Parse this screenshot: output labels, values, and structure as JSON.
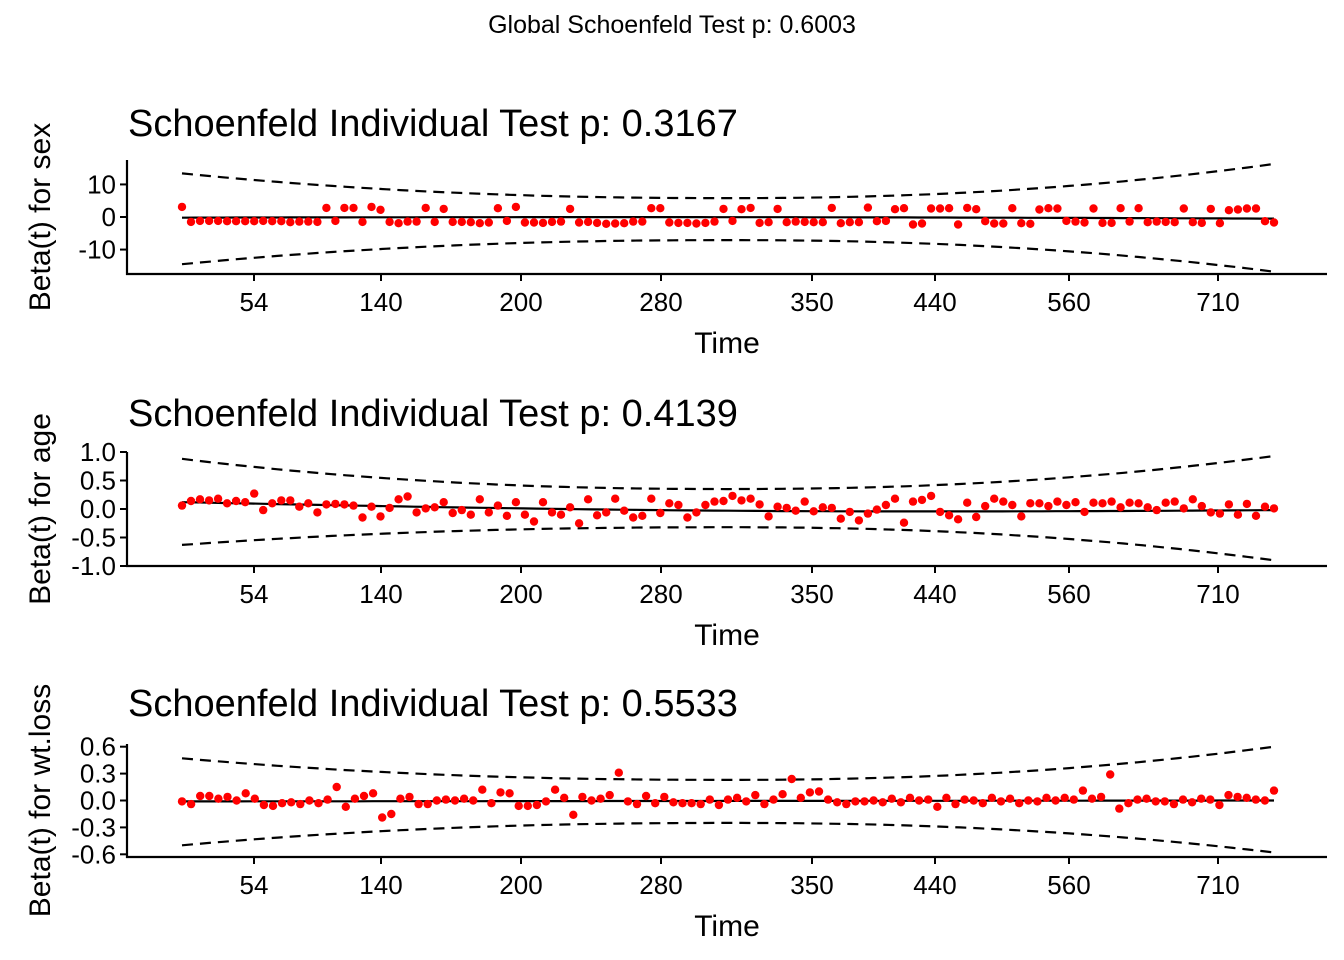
{
  "global_title": "Global Schoenfeld Test p: 0.6003",
  "colors": {
    "points": "#ff0000",
    "lines": "#000000",
    "background": "#ffffff"
  },
  "chart_data": [
    {
      "type": "scatter",
      "title": "Schoenfeld Individual Test p: 0.3167",
      "xlabel": "Time",
      "ylabel": "Beta(t) for sex",
      "x_tick_labels": [
        "54",
        "140",
        "200",
        "280",
        "350",
        "440",
        "560",
        "710"
      ],
      "y_ticks": [
        -10,
        0,
        10
      ],
      "y_tick_labels": [
        "-10",
        "0",
        "10"
      ],
      "ylim": [
        -17.5,
        17.5
      ],
      "fit": {
        "start": -0.2,
        "end": -0.5,
        "bow": 0.3
      },
      "ci_upper": {
        "start": 13.4,
        "min": 5.8,
        "end": 16.3
      },
      "ci_lower": {
        "start": -14.5,
        "max": -7.1,
        "end": -16.8
      },
      "points_y": [
        3.1,
        -1.5,
        -1.2,
        -1.2,
        -1.2,
        -1.3,
        -1.3,
        -1.3,
        -1.3,
        -1.2,
        -1.3,
        -1.3,
        -1.6,
        -1.4,
        -1.4,
        -1.5,
        2.8,
        -1.2,
        2.8,
        2.8,
        -1.5,
        3.1,
        2.2,
        -1.5,
        -1.9,
        -1.4,
        -1.4,
        2.8,
        -1.5,
        2.5,
        -1.5,
        -1.5,
        -1.6,
        -1.9,
        -1.7,
        2.7,
        -1.2,
        3.1,
        -1.7,
        -1.7,
        -1.8,
        -1.5,
        -1.4,
        2.5,
        -1.7,
        -1.5,
        -1.8,
        -2.1,
        -2.0,
        -1.9,
        -1.4,
        -1.4,
        2.7,
        2.7,
        -1.7,
        -1.8,
        -1.8,
        -2.0,
        -1.8,
        -1.4,
        2.5,
        -1.2,
        2.4,
        2.8,
        -1.8,
        -1.6,
        2.5,
        -1.6,
        -1.4,
        -1.5,
        -1.6,
        -1.6,
        2.8,
        -1.9,
        -1.6,
        -1.6,
        2.9,
        -1.3,
        -1.2,
        2.4,
        2.7,
        -2.3,
        -2.0,
        2.6,
        2.6,
        2.7,
        -2.3,
        2.8,
        2.4,
        -1.3,
        -2.0,
        -2.0,
        2.7,
        -1.9,
        -2.1,
        2.3,
        2.7,
        2.6,
        -1.2,
        -1.4,
        -1.7,
        2.6,
        -1.8,
        -1.8,
        2.7,
        -1.4,
        2.7,
        -1.6,
        -1.4,
        -1.5,
        -1.6,
        2.6,
        -1.6,
        -1.8,
        2.5,
        -1.9,
        2.1,
        2.3,
        2.6,
        2.6,
        -1.3,
        -1.7
      ]
    },
    {
      "type": "scatter",
      "title": "Schoenfeld Individual Test p: 0.4139",
      "xlabel": "Time",
      "ylabel": "Beta(t) for age",
      "x_tick_labels": [
        "54",
        "140",
        "200",
        "280",
        "350",
        "440",
        "560",
        "710"
      ],
      "y_ticks": [
        -1.0,
        -0.5,
        0.0,
        0.5,
        1.0
      ],
      "y_tick_labels": [
        "-1.0",
        "-0.5",
        "0.0",
        "0.5",
        "1.0"
      ],
      "ylim": [
        -1.0,
        1.0
      ],
      "fit": {
        "start": 0.12,
        "end": -0.02,
        "bow": -0.08
      },
      "ci_upper": {
        "start": 0.88,
        "min": 0.35,
        "end": 0.93
      },
      "ci_lower": {
        "start": -0.63,
        "max": -0.32,
        "end": -0.9
      },
      "points_y": [
        0.06,
        0.14,
        0.17,
        0.15,
        0.18,
        0.1,
        0.14,
        0.12,
        0.27,
        -0.02,
        0.1,
        0.15,
        0.15,
        0.04,
        0.1,
        -0.06,
        0.08,
        0.09,
        0.08,
        0.06,
        -0.15,
        0.04,
        -0.13,
        0.02,
        0.17,
        0.22,
        -0.06,
        0.01,
        0.03,
        0.12,
        -0.07,
        -0.02,
        -0.1,
        0.17,
        -0.06,
        0.06,
        -0.12,
        0.12,
        -0.1,
        -0.22,
        0.12,
        -0.06,
        -0.1,
        0.03,
        -0.25,
        0.17,
        -0.11,
        -0.06,
        0.18,
        -0.03,
        -0.15,
        -0.12,
        0.18,
        -0.07,
        0.1,
        0.07,
        -0.15,
        -0.06,
        0.07,
        0.13,
        0.14,
        0.23,
        0.15,
        0.18,
        0.08,
        -0.13,
        0.04,
        0.02,
        -0.03,
        0.13,
        -0.04,
        0.03,
        0.02,
        -0.17,
        -0.05,
        -0.2,
        -0.08,
        -0.01,
        0.07,
        0.18,
        -0.24,
        0.13,
        0.16,
        0.23,
        -0.05,
        -0.11,
        -0.18,
        0.11,
        -0.14,
        0.05,
        0.18,
        0.13,
        0.07,
        -0.13,
        0.1,
        0.1,
        0.05,
        0.13,
        0.07,
        0.12,
        -0.05,
        0.11,
        0.1,
        0.13,
        0.03,
        0.11,
        0.1,
        0.03,
        -0.02,
        0.11,
        0.13,
        0.01,
        0.17,
        0.05,
        -0.06,
        -0.08,
        0.08,
        -0.1,
        0.09,
        -0.12,
        0.04,
        0.01
      ]
    },
    {
      "type": "scatter",
      "title": "Schoenfeld Individual Test p: 0.5533",
      "xlabel": "Time",
      "ylabel": "Beta(t) for wt.loss",
      "x_tick_labels": [
        "54",
        "140",
        "200",
        "280",
        "350",
        "440",
        "560",
        "710"
      ],
      "y_ticks": [
        -0.6,
        -0.3,
        0.0,
        0.3,
        0.6
      ],
      "y_tick_labels": [
        "-0.6",
        "-0.3",
        "0.0",
        "0.3",
        "0.6"
      ],
      "ylim": [
        -0.63,
        0.63
      ],
      "fit": {
        "start": -0.01,
        "end": 0.0,
        "bow": 0.0
      },
      "ci_upper": {
        "start": 0.47,
        "min": 0.23,
        "end": 0.6
      },
      "ci_lower": {
        "start": -0.5,
        "max": -0.25,
        "end": -0.58
      },
      "points_y": [
        -0.01,
        -0.04,
        0.05,
        0.05,
        0.02,
        0.04,
        0.0,
        0.08,
        0.02,
        -0.05,
        -0.06,
        -0.03,
        -0.02,
        -0.04,
        0.0,
        -0.03,
        0.01,
        0.15,
        -0.07,
        0.02,
        0.05,
        0.08,
        -0.19,
        -0.15,
        0.02,
        0.04,
        -0.04,
        -0.04,
        0.0,
        0.01,
        0.0,
        0.02,
        0.0,
        0.12,
        -0.03,
        0.09,
        0.08,
        -0.06,
        -0.06,
        -0.05,
        -0.01,
        0.12,
        0.03,
        -0.16,
        0.04,
        0.0,
        0.02,
        0.06,
        0.31,
        -0.01,
        -0.04,
        0.05,
        -0.03,
        0.04,
        -0.02,
        -0.03,
        -0.03,
        -0.04,
        0.01,
        -0.05,
        0.01,
        0.03,
        -0.01,
        0.06,
        -0.04,
        0.01,
        0.07,
        0.24,
        0.03,
        0.09,
        0.1,
        0.01,
        -0.02,
        -0.04,
        -0.01,
        -0.01,
        0.0,
        -0.02,
        0.02,
        -0.02,
        0.03,
        0.0,
        0.01,
        -0.07,
        0.03,
        -0.04,
        0.01,
        0.0,
        -0.03,
        0.03,
        -0.01,
        0.02,
        -0.03,
        0.0,
        -0.01,
        0.03,
        0.0,
        0.03,
        0.01,
        0.11,
        0.02,
        0.04,
        0.29,
        -0.09,
        -0.03,
        0.01,
        0.02,
        -0.01,
        -0.01,
        -0.04,
        0.01,
        -0.02,
        0.02,
        0.01,
        -0.05,
        0.06,
        0.04,
        0.03,
        0.01,
        0.0,
        0.11
      ]
    }
  ]
}
